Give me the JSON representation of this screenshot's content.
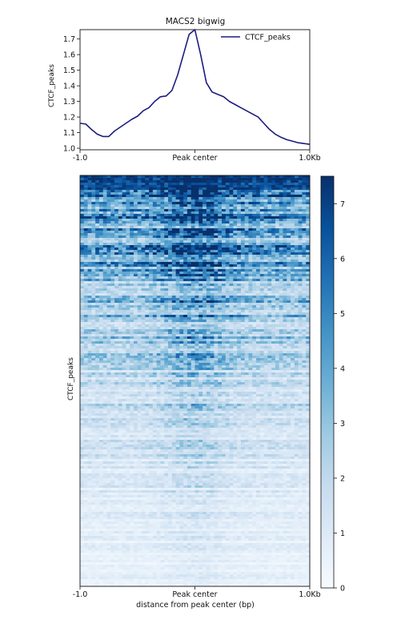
{
  "chart_data": [
    {
      "type": "line",
      "title": "MACS2 bigwig",
      "ylabel": "CTCF_peaks",
      "legend": {
        "position": "top-right",
        "entries": [
          "CTCF_peaks"
        ]
      },
      "xticks": [
        "-1.0",
        "Peak center",
        "1.0Kb"
      ],
      "xlim": [
        -1000,
        1000
      ],
      "ylim": [
        0.99,
        1.76
      ],
      "yticks": [
        1.0,
        1.1,
        1.2,
        1.3,
        1.4,
        1.5,
        1.6,
        1.7
      ],
      "grid": false,
      "series": [
        {
          "name": "CTCF_peaks",
          "color": "#1c1c80",
          "x": [
            -1000,
            -950,
            -900,
            -850,
            -800,
            -750,
            -700,
            -650,
            -600,
            -550,
            -500,
            -450,
            -400,
            -350,
            -300,
            -250,
            -200,
            -150,
            -100,
            -50,
            0,
            50,
            100,
            150,
            200,
            250,
            300,
            350,
            400,
            450,
            500,
            550,
            600,
            650,
            700,
            750,
            800,
            850,
            900,
            950,
            1000
          ],
          "y": [
            1.16,
            1.155,
            1.12,
            1.09,
            1.075,
            1.075,
            1.11,
            1.135,
            1.16,
            1.185,
            1.205,
            1.24,
            1.26,
            1.3,
            1.33,
            1.335,
            1.37,
            1.47,
            1.6,
            1.73,
            1.76,
            1.6,
            1.42,
            1.36,
            1.345,
            1.33,
            1.3,
            1.28,
            1.26,
            1.24,
            1.22,
            1.2,
            1.16,
            1.12,
            1.09,
            1.07,
            1.055,
            1.045,
            1.035,
            1.03,
            1.025
          ]
        }
      ]
    },
    {
      "type": "heatmap",
      "ylabel": "CTCF_peaks",
      "xlabel": "distance from peak center (bp)",
      "xticks": [
        "-1.0",
        "Peak center",
        "1.0Kb"
      ],
      "colorbar": {
        "min": 0,
        "max": 7.5,
        "ticks": [
          0,
          1,
          2,
          3,
          4,
          5,
          6,
          7
        ],
        "colormap": "Blues",
        "color_low": "#f7fbff",
        "color_high": "#08306b"
      },
      "description_values": {
        "bins": 60,
        "peak_center_value": 7.5
      }
    }
  ]
}
